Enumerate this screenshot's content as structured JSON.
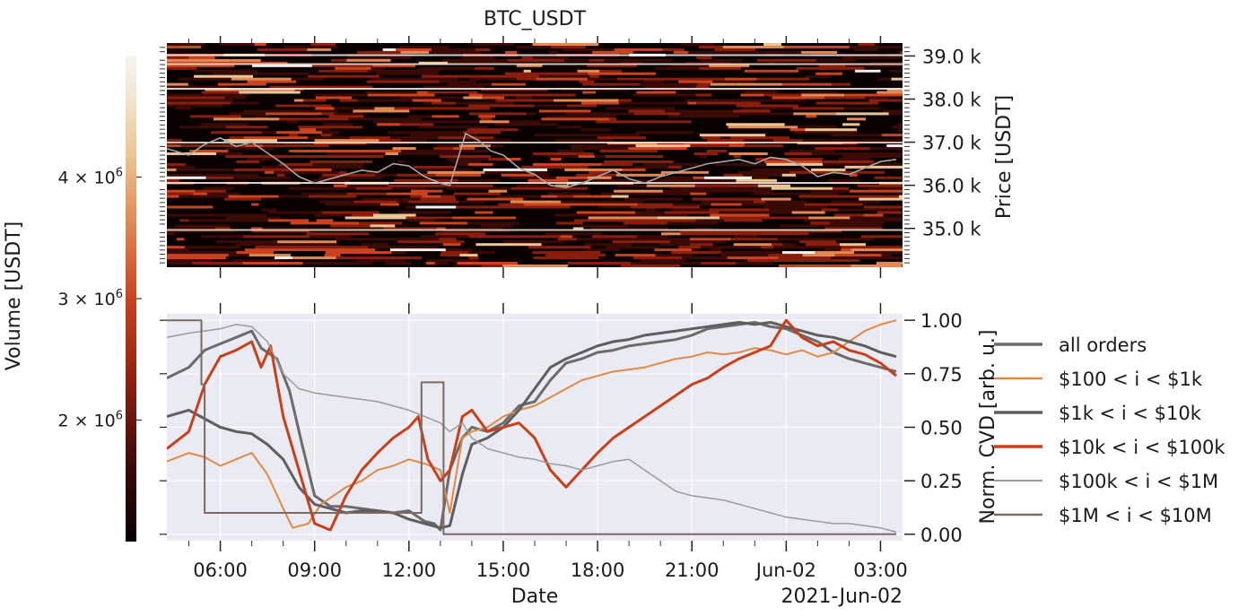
{
  "title": "BTC_USDT",
  "colorbar": {
    "label": "Volume [USDT]",
    "ticks": [
      {
        "value": 4000000,
        "base": "4 × 10",
        "exp": "6"
      },
      {
        "value": 3000000,
        "base": "3 × 10",
        "exp": "6"
      },
      {
        "value": 2000000,
        "base": "2 × 10",
        "exp": "6"
      }
    ],
    "range": [
      1000000,
      5000000
    ],
    "colors": [
      "#0a0000",
      "#3a0a06",
      "#8a1e0e",
      "#c9431f",
      "#e08a55",
      "#ebc695",
      "#f2e6d3",
      "#f7f4f2"
    ]
  },
  "xaxis": {
    "label": "Date",
    "offset_label": "2021-Jun-02",
    "range_hours": [
      4.3,
      27.7
    ],
    "ticks": [
      {
        "hours": 6,
        "label": "06:00"
      },
      {
        "hours": 9,
        "label": "09:00"
      },
      {
        "hours": 12,
        "label": "12:00"
      },
      {
        "hours": 15,
        "label": "15:00"
      },
      {
        "hours": 18,
        "label": "18:00"
      },
      {
        "hours": 21,
        "label": "21:00"
      },
      {
        "hours": 24,
        "label": "Jun-02"
      },
      {
        "hours": 27,
        "label": "03:00"
      }
    ]
  },
  "price_axis": {
    "label": "Price [USDT]",
    "range": [
      34100,
      39300
    ],
    "ticks": [
      {
        "value": 35000,
        "label": "35.0 k"
      },
      {
        "value": 36000,
        "label": "36.0 k"
      },
      {
        "value": 37000,
        "label": "37.0 k"
      },
      {
        "value": 38000,
        "label": "38.0 k"
      },
      {
        "value": 39000,
        "label": "39.0 k"
      }
    ]
  },
  "cvd_axis": {
    "label": "Norm. CVD [arb. u.]",
    "range": [
      -0.03,
      1.03
    ],
    "ticks": [
      {
        "value": 0.0,
        "label": "0.00"
      },
      {
        "value": 0.25,
        "label": "0.25"
      },
      {
        "value": 0.5,
        "label": "0.50"
      },
      {
        "value": 0.75,
        "label": "0.75"
      },
      {
        "value": 1.0,
        "label": "1.00"
      }
    ]
  },
  "chart_data": [
    {
      "type": "heatmap",
      "title": "BTC_USDT",
      "xlabel": "",
      "ylabel": "Price [USDT]",
      "ylim": [
        34100,
        39300
      ],
      "x_unit": "hours since 2021-Jun-01 00:00",
      "price_line": {
        "color": "#a8a8a8",
        "x": [
          4.3,
          5.0,
          5.5,
          6.0,
          6.5,
          7.0,
          7.5,
          8.0,
          8.5,
          9.0,
          9.5,
          10.0,
          10.5,
          11.0,
          11.5,
          12.0,
          12.5,
          13.0,
          13.3,
          13.8,
          14.2,
          14.6,
          15.0,
          15.5,
          16.0,
          16.5,
          17.0,
          17.5,
          18.0,
          18.5,
          19.0,
          19.5,
          20.0,
          20.5,
          21.0,
          21.5,
          22.0,
          22.5,
          23.0,
          23.5,
          24.0,
          24.5,
          25.0,
          25.5,
          26.0,
          26.5,
          27.0,
          27.5
        ],
        "y": [
          36850,
          36700,
          36950,
          37100,
          36900,
          37000,
          36750,
          36500,
          36200,
          36050,
          36150,
          36250,
          36350,
          36300,
          36500,
          36450,
          36200,
          36050,
          36000,
          37200,
          37050,
          36800,
          36700,
          36400,
          36250,
          36000,
          35950,
          36050,
          36200,
          36350,
          36150,
          36050,
          36200,
          36300,
          36400,
          36500,
          36550,
          36600,
          36500,
          36650,
          36600,
          36450,
          36200,
          36300,
          36250,
          36400,
          36550,
          36600
        ]
      },
      "value_range": [
        1000000,
        5000000
      ]
    },
    {
      "type": "line",
      "title": "",
      "xlabel": "Date",
      "ylabel": "Norm. CVD [arb. u.]",
      "ylim": [
        0,
        1
      ],
      "x_unit": "hours since 2021-Jun-01 00:00",
      "legend_position": "right",
      "series": [
        {
          "name": "all orders",
          "color": "#6b6b6b",
          "width": 3,
          "x": [
            4.3,
            5.0,
            5.5,
            6.0,
            6.5,
            7.0,
            7.3,
            7.8,
            8.2,
            8.6,
            9.0,
            9.5,
            10.0,
            10.5,
            11.0,
            11.5,
            12.0,
            12.5,
            12.8,
            13.0,
            13.3,
            13.7,
            14.0,
            14.5,
            15.0,
            15.5,
            16.0,
            16.5,
            17.0,
            17.5,
            18.0,
            18.5,
            19.0,
            19.5,
            20.0,
            20.5,
            21.0,
            21.5,
            22.0,
            22.5,
            23.0,
            23.5,
            24.0,
            24.5,
            25.0,
            25.5,
            26.0,
            26.5,
            27.0,
            27.5
          ],
          "y": [
            0.73,
            0.78,
            0.86,
            0.89,
            0.92,
            0.95,
            0.87,
            0.82,
            0.67,
            0.42,
            0.18,
            0.13,
            0.13,
            0.12,
            0.11,
            0.1,
            0.11,
            0.06,
            0.05,
            0.02,
            0.3,
            0.45,
            0.5,
            0.48,
            0.52,
            0.6,
            0.62,
            0.72,
            0.8,
            0.82,
            0.85,
            0.86,
            0.88,
            0.89,
            0.9,
            0.91,
            0.93,
            0.96,
            0.97,
            0.98,
            0.99,
            0.97,
            0.96,
            0.93,
            0.9,
            0.85,
            0.82,
            0.8,
            0.78,
            0.76
          ]
        },
        {
          "name": "$100 < i < $1k",
          "color": "#e08a45",
          "width": 2,
          "x": [
            4.3,
            5.0,
            5.5,
            6.0,
            6.5,
            7.0,
            7.5,
            8.0,
            8.3,
            8.8,
            9.2,
            9.6,
            10.0,
            10.5,
            11.0,
            11.5,
            12.0,
            12.5,
            13.0,
            13.3,
            13.7,
            14.0,
            14.5,
            15.0,
            15.5,
            16.0,
            16.5,
            17.0,
            17.5,
            18.0,
            18.5,
            19.0,
            19.5,
            20.0,
            20.5,
            21.0,
            21.5,
            22.0,
            22.5,
            23.0,
            23.5,
            24.0,
            24.5,
            25.0,
            25.5,
            26.0,
            26.5,
            27.0,
            27.5
          ],
          "y": [
            0.34,
            0.38,
            0.36,
            0.32,
            0.35,
            0.38,
            0.28,
            0.12,
            0.03,
            0.05,
            0.14,
            0.18,
            0.22,
            0.25,
            0.3,
            0.32,
            0.35,
            0.33,
            0.3,
            0.1,
            0.45,
            0.48,
            0.5,
            0.55,
            0.58,
            0.6,
            0.64,
            0.68,
            0.72,
            0.74,
            0.76,
            0.77,
            0.78,
            0.8,
            0.82,
            0.83,
            0.85,
            0.84,
            0.85,
            0.87,
            0.86,
            0.84,
            0.86,
            0.83,
            0.85,
            0.9,
            0.95,
            0.98,
            1.0
          ]
        },
        {
          "name": "$1k < i < $10k",
          "color": "#5e5e5e",
          "width": 3,
          "x": [
            4.3,
            5.0,
            5.5,
            6.0,
            6.5,
            7.0,
            7.5,
            8.0,
            8.5,
            9.0,
            9.5,
            10.0,
            10.5,
            11.0,
            11.5,
            12.0,
            12.5,
            13.0,
            13.3,
            13.7,
            14.0,
            14.5,
            15.0,
            15.5,
            16.0,
            16.5,
            17.0,
            17.5,
            18.0,
            18.5,
            19.0,
            19.5,
            20.0,
            20.5,
            21.0,
            21.5,
            22.0,
            22.5,
            23.0,
            23.5,
            24.0,
            24.5,
            25.0,
            25.5,
            26.0,
            26.5,
            27.0,
            27.5
          ],
          "y": [
            0.55,
            0.58,
            0.54,
            0.5,
            0.48,
            0.47,
            0.42,
            0.35,
            0.22,
            0.14,
            0.12,
            0.1,
            0.11,
            0.11,
            0.1,
            0.07,
            0.05,
            0.03,
            0.04,
            0.28,
            0.42,
            0.45,
            0.5,
            0.58,
            0.68,
            0.78,
            0.82,
            0.85,
            0.88,
            0.9,
            0.91,
            0.93,
            0.94,
            0.95,
            0.96,
            0.97,
            0.98,
            0.99,
            0.98,
            0.99,
            0.97,
            0.95,
            0.93,
            0.92,
            0.9,
            0.88,
            0.85,
            0.83
          ]
        },
        {
          "name": "$10k < i < $100k",
          "color": "#c8401a",
          "width": 3,
          "x": [
            4.3,
            5.0,
            5.5,
            6.0,
            6.5,
            7.0,
            7.3,
            7.6,
            8.0,
            8.5,
            9.0,
            9.5,
            10.0,
            10.5,
            11.0,
            11.5,
            12.0,
            12.3,
            12.6,
            13.0,
            13.3,
            13.7,
            14.0,
            14.5,
            15.0,
            15.5,
            16.0,
            16.5,
            17.0,
            17.5,
            18.0,
            18.5,
            19.0,
            19.5,
            20.0,
            20.5,
            21.0,
            21.5,
            22.0,
            22.5,
            23.0,
            23.5,
            24.0,
            24.5,
            25.0,
            25.5,
            26.0,
            26.5,
            27.0,
            27.5
          ],
          "y": [
            0.4,
            0.48,
            0.7,
            0.83,
            0.86,
            0.9,
            0.78,
            0.88,
            0.55,
            0.3,
            0.05,
            0.02,
            0.18,
            0.3,
            0.38,
            0.45,
            0.5,
            0.55,
            0.35,
            0.25,
            0.3,
            0.55,
            0.58,
            0.48,
            0.5,
            0.52,
            0.45,
            0.3,
            0.22,
            0.3,
            0.38,
            0.45,
            0.5,
            0.55,
            0.6,
            0.65,
            0.7,
            0.73,
            0.78,
            0.82,
            0.85,
            0.88,
            1.0,
            0.92,
            0.88,
            0.9,
            0.86,
            0.84,
            0.8,
            0.74
          ]
        },
        {
          "name": "$100k < i < $1M",
          "color": "#9a9a9a",
          "width": 1.5,
          "x": [
            4.3,
            5.0,
            5.5,
            6.0,
            6.5,
            7.0,
            7.5,
            8.0,
            8.5,
            9.0,
            9.5,
            10.0,
            10.5,
            11.0,
            11.5,
            12.0,
            12.5,
            13.0,
            13.3,
            13.7,
            14.0,
            14.5,
            15.0,
            15.5,
            16.0,
            16.5,
            17.0,
            17.5,
            18.0,
            18.5,
            19.0,
            19.5,
            20.0,
            20.5,
            21.0,
            21.5,
            22.0,
            22.5,
            23.0,
            23.5,
            24.0,
            24.5,
            25.0,
            25.5,
            26.0,
            26.5,
            27.0,
            27.5
          ],
          "y": [
            0.92,
            0.94,
            0.95,
            0.96,
            0.98,
            0.97,
            0.9,
            0.75,
            0.68,
            0.66,
            0.65,
            0.64,
            0.63,
            0.62,
            0.6,
            0.58,
            0.55,
            0.52,
            0.48,
            0.52,
            0.45,
            0.4,
            0.38,
            0.36,
            0.35,
            0.33,
            0.32,
            0.3,
            0.32,
            0.34,
            0.35,
            0.3,
            0.25,
            0.2,
            0.18,
            0.17,
            0.16,
            0.14,
            0.12,
            0.1,
            0.08,
            0.07,
            0.06,
            0.05,
            0.05,
            0.04,
            0.03,
            0.01
          ]
        },
        {
          "name": "$1M < i < $10M",
          "color": "#7a6a62",
          "width": 2,
          "x": [
            4.3,
            5.4,
            5.4,
            5.5,
            5.5,
            12.4,
            12.4,
            13.1,
            13.1,
            27.5
          ],
          "y": [
            1.0,
            1.0,
            0.7,
            0.7,
            0.1,
            0.1,
            0.71,
            0.71,
            0.0,
            0.0
          ]
        }
      ]
    }
  ]
}
